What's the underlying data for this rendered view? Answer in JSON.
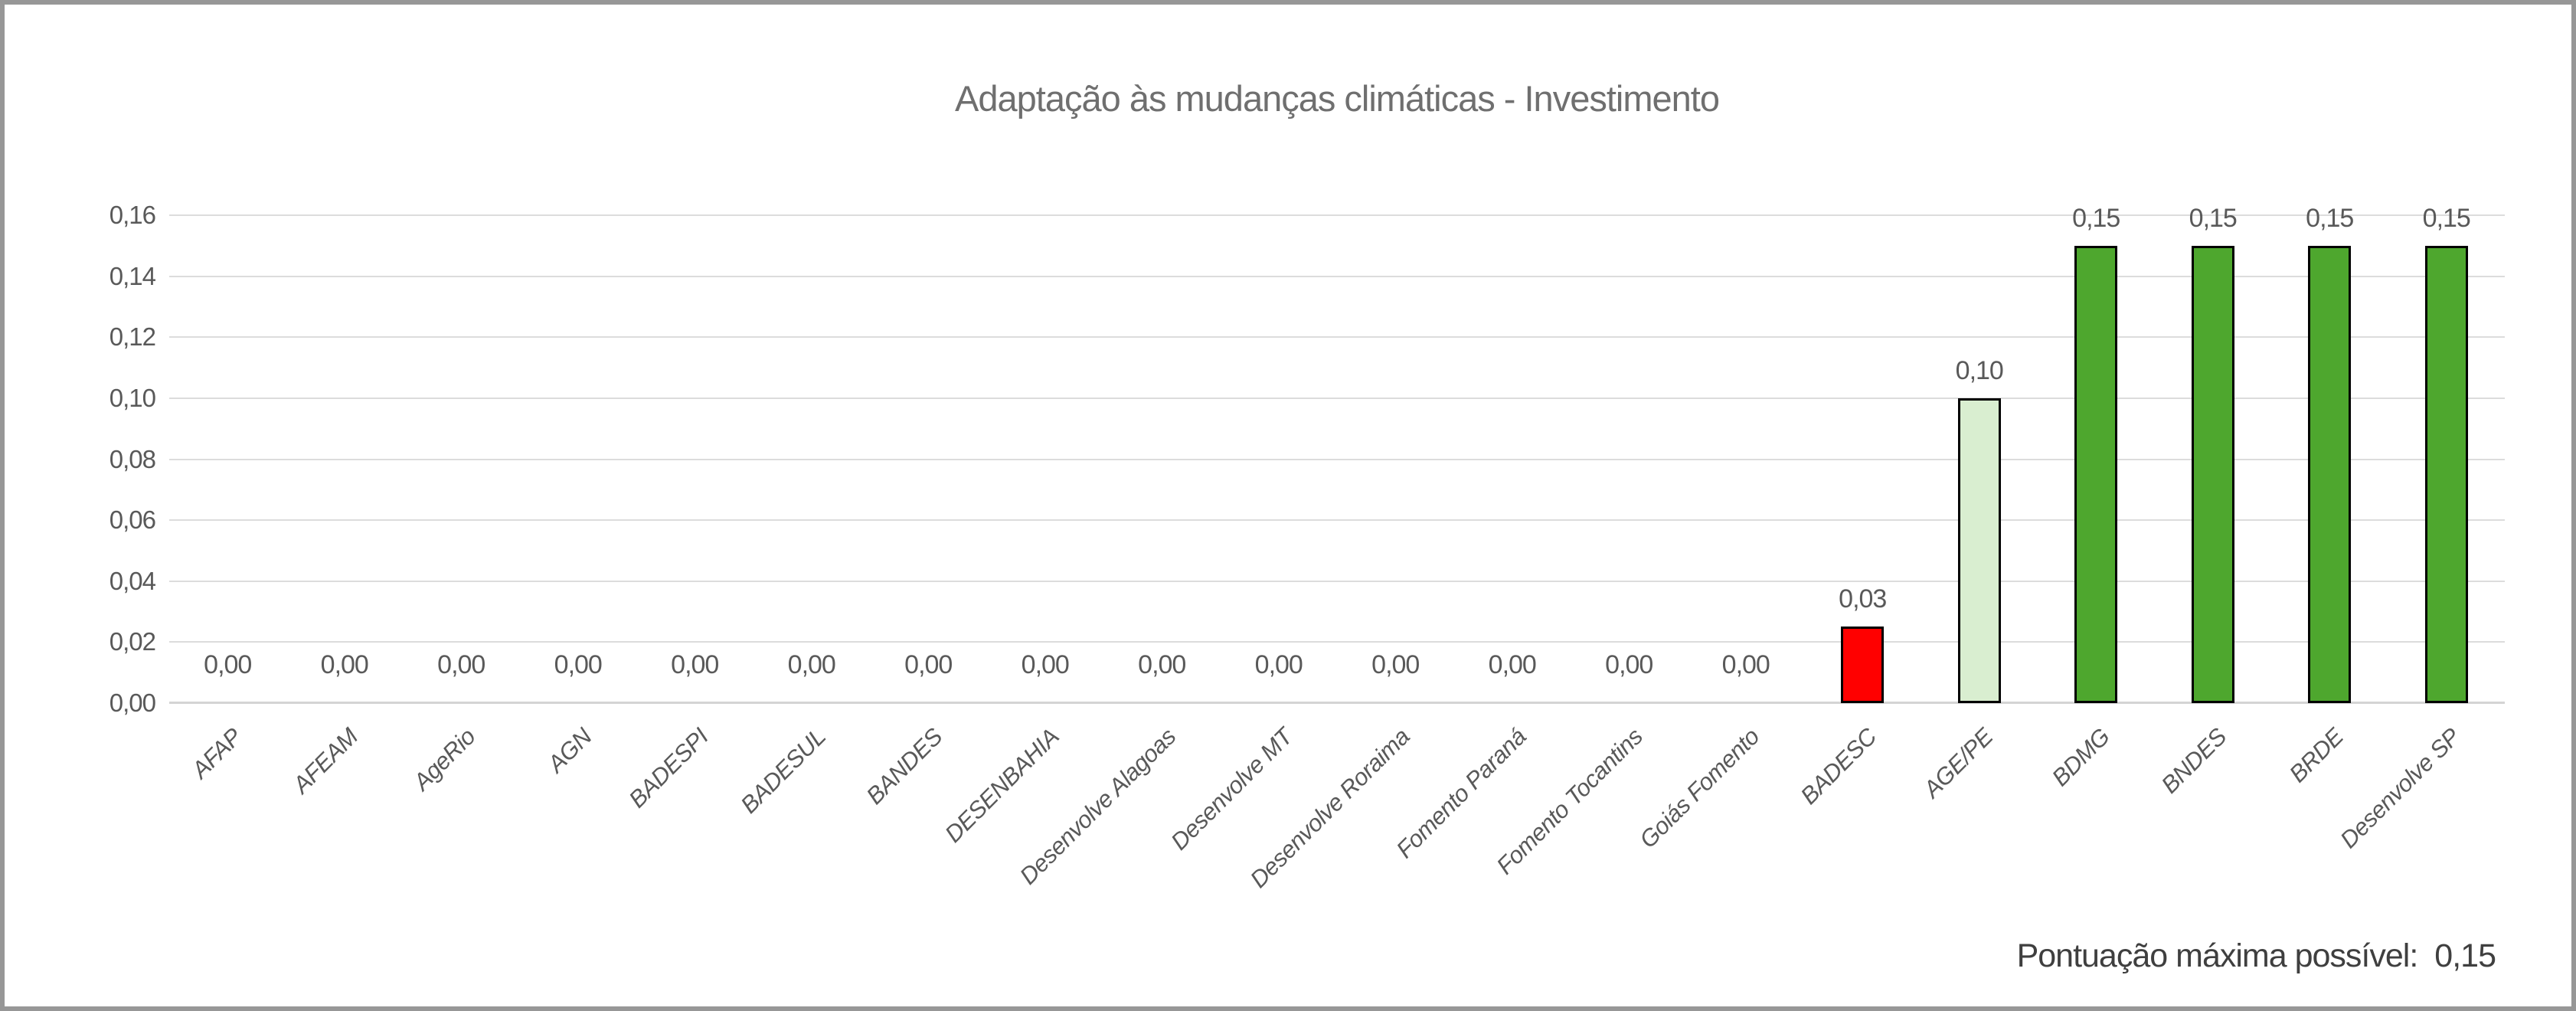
{
  "title": "Adaptação às mudanças climáticas - Investimento",
  "footer": {
    "label": "Pontuação máxima possível:",
    "value": "0,15"
  },
  "colors": {
    "title_text": "#6f6f6f",
    "axis_text": "#595959",
    "footer_text": "#3f3f3f",
    "gridline": "#dcdcdc",
    "bar_border": "#000000",
    "bar_red": "#ff0000",
    "bar_light_green": "#d9eed0",
    "bar_green": "#4ea72e",
    "frame_border": "#979797",
    "background": "#ffffff"
  },
  "chart_data": {
    "type": "bar",
    "title": "Adaptação às mudanças climáticas - Investimento",
    "xlabel": "",
    "ylabel": "",
    "ylim": [
      0,
      0.16
    ],
    "ytick_step": 0.02,
    "yticks_display": [
      "0,00",
      "0,02",
      "0,04",
      "0,06",
      "0,08",
      "0,10",
      "0,12",
      "0,14",
      "0,16"
    ],
    "grid": true,
    "legend": false,
    "decimal_separator": ",",
    "annotation": "Pontuação máxima possível:  0,15",
    "categories": [
      "AFAP",
      "AFEAM",
      "AgeRio",
      "AGN",
      "BADESPI",
      "BADESUL",
      "BANDES",
      "DESENBAHIA",
      "Desenvolve Alagoas",
      "Desenvolve MT",
      "Desenvolve Roraima",
      "Fomento Paraná",
      "Fomento Tocantins",
      "Goiás Fomento",
      "BADESC",
      "AGE/PE",
      "BDMG",
      "BNDES",
      "BRDE",
      "Desenvolve SP"
    ],
    "values": [
      0.0,
      0.0,
      0.0,
      0.0,
      0.0,
      0.0,
      0.0,
      0.0,
      0.0,
      0.0,
      0.0,
      0.0,
      0.0,
      0.0,
      0.03,
      0.1,
      0.15,
      0.15,
      0.15,
      0.15
    ],
    "values_rendered": [
      0,
      0,
      0,
      0,
      0,
      0,
      0,
      0,
      0,
      0,
      0,
      0,
      0,
      0,
      0.025,
      0.1,
      0.15,
      0.15,
      0.15,
      0.15
    ],
    "data_labels": [
      "0,00",
      "0,00",
      "0,00",
      "0,00",
      "0,00",
      "0,00",
      "0,00",
      "0,00",
      "0,00",
      "0,00",
      "0,00",
      "0,00",
      "0,00",
      "0,00",
      "0,03",
      "0,10",
      "0,15",
      "0,15",
      "0,15",
      "0,15"
    ],
    "bar_colors": [
      null,
      null,
      null,
      null,
      null,
      null,
      null,
      null,
      null,
      null,
      null,
      null,
      null,
      null,
      "#ff0000",
      "#d9eed0",
      "#4ea72e",
      "#4ea72e",
      "#4ea72e",
      "#4ea72e"
    ]
  }
}
